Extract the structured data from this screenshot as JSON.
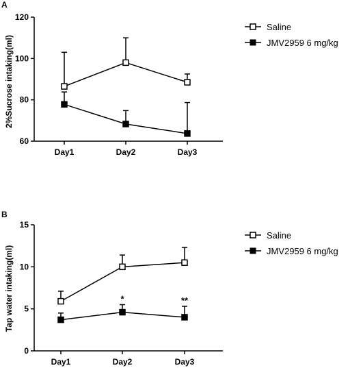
{
  "chart_data": [
    {
      "panel": "A",
      "type": "line",
      "xlabel": "",
      "ylabel": "2%Sucrose intaking(ml)",
      "categories": [
        "Day1",
        "Day2",
        "Day3"
      ],
      "ylim": [
        60,
        120
      ],
      "yticks": [
        60,
        80,
        100,
        120
      ],
      "series": [
        {
          "name": "Saline",
          "marker": "open-square",
          "values": [
            86.5,
            98,
            88.5
          ],
          "errors": [
            16.5,
            12,
            4
          ]
        },
        {
          "name": "JMV2959 6 mg/kg",
          "marker": "filled-square",
          "values": [
            77.8,
            68.3,
            63.7
          ],
          "errors": [
            6,
            6.5,
            15
          ]
        }
      ],
      "annotations": [],
      "legend": "right"
    },
    {
      "panel": "B",
      "type": "line",
      "xlabel": "",
      "ylabel": "Tap water intaking(ml)",
      "categories": [
        "Day1",
        "Day2",
        "Day3"
      ],
      "ylim": [
        0,
        15
      ],
      "yticks": [
        0,
        5,
        10,
        15
      ],
      "series": [
        {
          "name": "Saline",
          "marker": "open-square",
          "values": [
            5.9,
            10,
            10.5
          ],
          "errors": [
            1.2,
            1.4,
            1.8
          ]
        },
        {
          "name": "JMV2959 6 mg/kg",
          "marker": "filled-square",
          "values": [
            3.7,
            4.6,
            4.0
          ],
          "errors": [
            0.8,
            0.9,
            1.3
          ]
        }
      ],
      "annotations": [
        {
          "category": "Day2",
          "text": "*"
        },
        {
          "category": "Day3",
          "text": "**"
        }
      ],
      "legend": "right"
    }
  ]
}
